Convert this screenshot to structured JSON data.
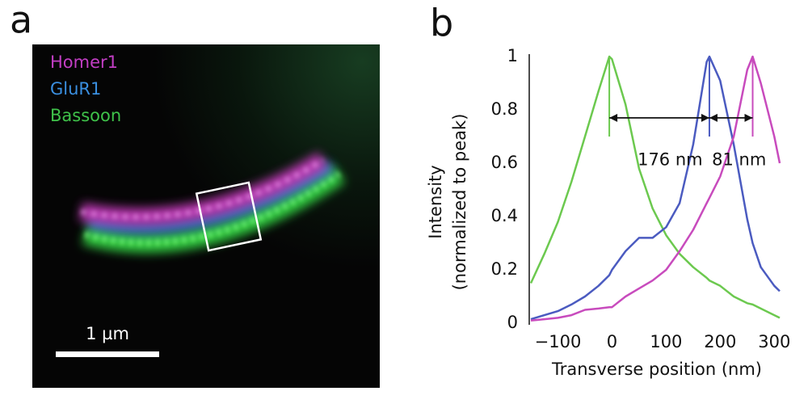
{
  "panels": [
    "a",
    "b"
  ],
  "image": {
    "labels": [
      {
        "text": "Homer1",
        "color": "#c23ec4"
      },
      {
        "text": "GluR1",
        "color": "#3a8fe0"
      },
      {
        "text": "Bassoon",
        "color": "#3fc24a"
      }
    ],
    "scale_bar": "1 µm"
  },
  "chart_data": {
    "type": "line",
    "xlabel": "Transverse position (nm)",
    "ylabel": [
      "Intensity",
      "(normalized to peak)"
    ],
    "x": [
      -150,
      -125,
      -100,
      -75,
      -50,
      -25,
      -5,
      0,
      25,
      50,
      75,
      100,
      125,
      150,
      175,
      180,
      200,
      225,
      250,
      260,
      275,
      300,
      310
    ],
    "series": [
      {
        "color": "#6cc94f",
        "values": [
          0.15,
          0.26,
          0.38,
          0.53,
          0.7,
          0.87,
          1.0,
          0.99,
          0.82,
          0.58,
          0.43,
          0.33,
          0.26,
          0.21,
          0.17,
          0.16,
          0.14,
          0.1,
          0.075,
          0.07,
          0.055,
          0.03,
          0.02
        ]
      },
      {
        "color": "#4b5bc0",
        "values": [
          0.015,
          0.03,
          0.045,
          0.07,
          0.1,
          0.14,
          0.18,
          0.2,
          0.27,
          0.32,
          0.32,
          0.36,
          0.45,
          0.67,
          0.98,
          1.0,
          0.91,
          0.67,
          0.39,
          0.3,
          0.21,
          0.14,
          0.12
        ]
      },
      {
        "color": "#c84bbd",
        "values": [
          0.01,
          0.015,
          0.02,
          0.03,
          0.05,
          0.055,
          0.06,
          0.06,
          0.1,
          0.13,
          0.16,
          0.2,
          0.27,
          0.35,
          0.45,
          0.47,
          0.55,
          0.7,
          0.95,
          1.0,
          0.9,
          0.7,
          0.6
        ]
      }
    ],
    "annotations": [
      "176 nm",
      "81 nm"
    ],
    "xlim": [
      -153,
      313
    ],
    "ylim": [
      0,
      1
    ],
    "xticks": [
      {
        "value": -100,
        "label": "−100"
      },
      0,
      100,
      200,
      300
    ],
    "yticks": [
      0,
      0.2,
      0.4,
      0.6,
      0.8,
      1
    ],
    "grid": false
  }
}
